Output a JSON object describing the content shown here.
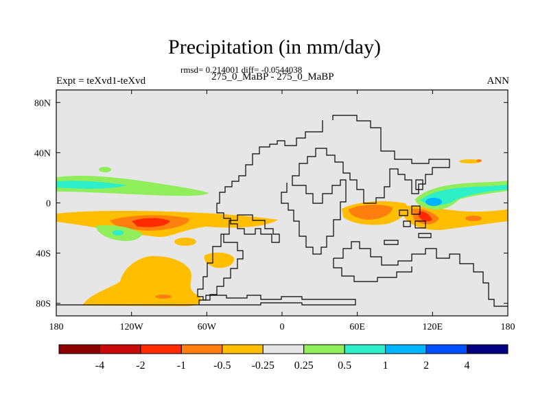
{
  "title": "Precipitation (in mm/day)",
  "stats": "rmsd= 0.214001 diff= -0.0544038",
  "subtitle": "275_0_MaBP - 275_0_MaBP",
  "experiment": "Expt = teXvd1-teXvd",
  "season": "ANN",
  "chart_data": {
    "type": "heatmap",
    "title": "Precipitation (in mm/day)",
    "xlabel": "",
    "ylabel": "",
    "x_ticks": [
      "180",
      "120W",
      "60W",
      "0",
      "60E",
      "120E",
      "180"
    ],
    "x_tick_values": [
      -180,
      -120,
      -60,
      0,
      60,
      120,
      180
    ],
    "y_ticks": [
      "80N",
      "40N",
      "0",
      "40S",
      "80S"
    ],
    "y_tick_values": [
      80,
      40,
      0,
      -40,
      -80
    ],
    "xlim": [
      -180,
      180
    ],
    "ylim": [
      -90,
      90
    ],
    "colorbar": {
      "levels": [
        "-4",
        "-2",
        "-1",
        "-0.5",
        "-0.25",
        "0.25",
        "0.5",
        "1",
        "2",
        "4"
      ],
      "colors": [
        "#8b0000",
        "#c80a0a",
        "#ff2a00",
        "#ff7f0e",
        "#ffbf00",
        "#e6e6e6",
        "#90ee5a",
        "#2ef0c8",
        "#00b4ff",
        "#0050ff",
        "#000080"
      ]
    },
    "background_value_color": "#e6e6e6",
    "regions": [
      {
        "value_range": "-0.5 to -0.25",
        "color": "#ffbf00",
        "lon": [
          -180,
          180
        ],
        "lat": [
          -30,
          -5
        ]
      },
      {
        "value_range": "-1 to -0.5",
        "color": "#ff7f0e",
        "lon": [
          -130,
          -75
        ],
        "lat": [
          -22,
          -10
        ]
      },
      {
        "value_range": "-2 to -1",
        "color": "#ff2a00",
        "lon": [
          -115,
          -90
        ],
        "lat": [
          -20,
          -12
        ]
      },
      {
        "value_range": "0.25 to 0.5",
        "color": "#90ee5a",
        "lon": [
          -180,
          -60
        ],
        "lat": [
          5,
          22
        ]
      },
      {
        "value_range": "0.5 to 1",
        "color": "#2ef0c8",
        "lon": [
          -175,
          -110
        ],
        "lat": [
          8,
          18
        ]
      },
      {
        "value_range": "-0.5 to -0.25",
        "color": "#ffbf00",
        "lon": [
          -160,
          -75
        ],
        "lat": [
          -85,
          -40
        ]
      },
      {
        "value_range": "-1 to -0.5",
        "color": "#ff7f0e",
        "lon": [
          50,
          95
        ],
        "lat": [
          -15,
          0
        ]
      },
      {
        "value_range": "-1 to -0.5",
        "color": "#ff7f0e",
        "lon": [
          105,
          135
        ],
        "lat": [
          -20,
          -5
        ]
      },
      {
        "value_range": "0.5 to 1",
        "color": "#2ef0c8",
        "lon": [
          105,
          180
        ],
        "lat": [
          0,
          15
        ]
      },
      {
        "value_range": "1 to 2",
        "color": "#00b4ff",
        "lon": [
          110,
          130
        ],
        "lat": [
          -3,
          5
        ]
      }
    ]
  }
}
